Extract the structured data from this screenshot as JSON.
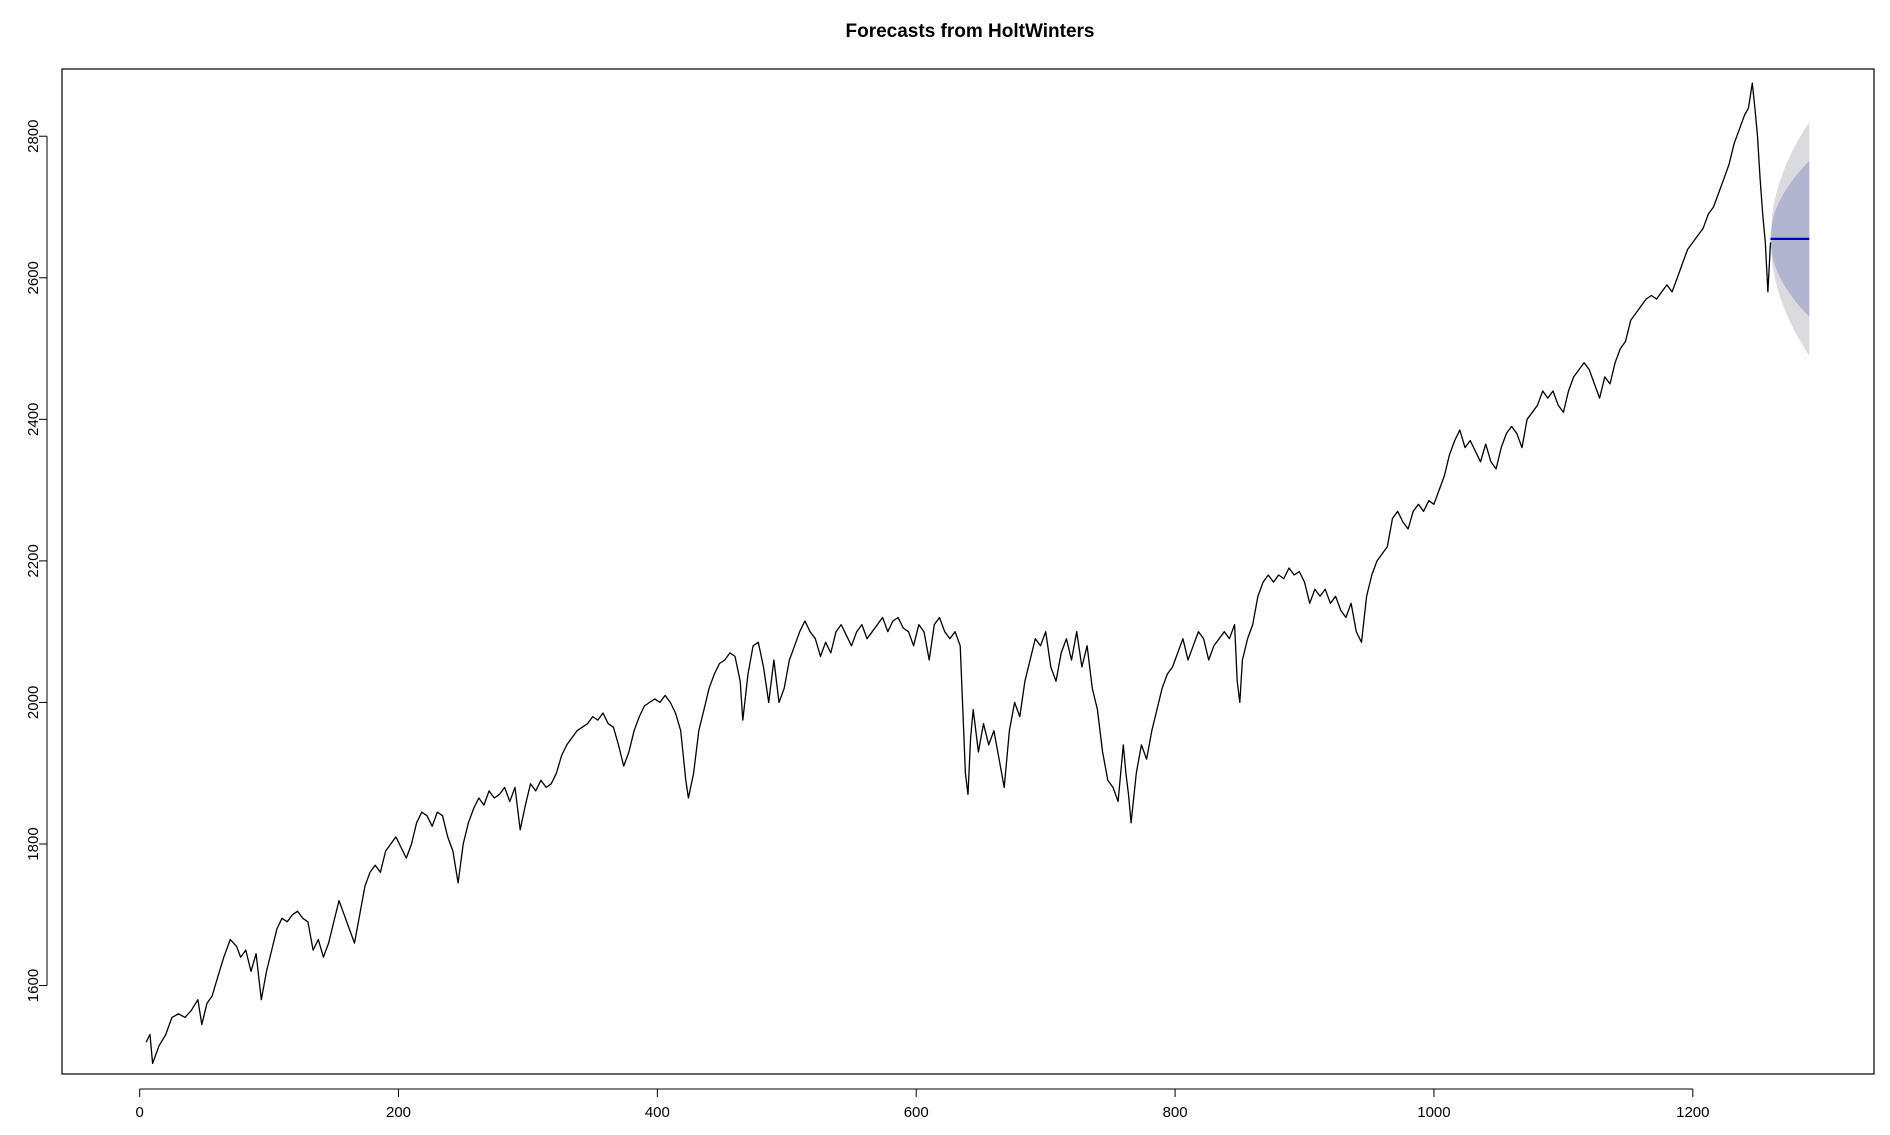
{
  "chart_data": {
    "type": "line",
    "title": "Forecasts from HoltWinters",
    "xlabel": "",
    "ylabel": "",
    "xlim": [
      -60,
      1340
    ],
    "ylim": [
      1475,
      2895
    ],
    "x_ticks": [
      0,
      200,
      400,
      600,
      800,
      1000,
      1200
    ],
    "y_ticks": [
      1600,
      1800,
      2000,
      2200,
      2400,
      2600,
      2800
    ],
    "grid": false,
    "legend": "none",
    "colors": {
      "history": "#000000",
      "forecast": "#0000cc",
      "interval_80": "#b1b5ce",
      "interval_95": "#dbdbdf"
    },
    "history_points": [
      [
        5,
        1520
      ],
      [
        8,
        1531
      ],
      [
        10,
        1490
      ],
      [
        15,
        1515
      ],
      [
        20,
        1530
      ],
      [
        25,
        1555
      ],
      [
        30,
        1560
      ],
      [
        35,
        1555
      ],
      [
        40,
        1565
      ],
      [
        45,
        1580
      ],
      [
        48,
        1545
      ],
      [
        52,
        1575
      ],
      [
        56,
        1585
      ],
      [
        60,
        1610
      ],
      [
        65,
        1640
      ],
      [
        70,
        1665
      ],
      [
        75,
        1655
      ],
      [
        78,
        1640
      ],
      [
        82,
        1650
      ],
      [
        86,
        1620
      ],
      [
        90,
        1645
      ],
      [
        94,
        1580
      ],
      [
        98,
        1620
      ],
      [
        102,
        1650
      ],
      [
        106,
        1680
      ],
      [
        110,
        1695
      ],
      [
        114,
        1690
      ],
      [
        118,
        1700
      ],
      [
        122,
        1705
      ],
      [
        126,
        1695
      ],
      [
        130,
        1690
      ],
      [
        134,
        1650
      ],
      [
        138,
        1665
      ],
      [
        142,
        1640
      ],
      [
        146,
        1660
      ],
      [
        150,
        1690
      ],
      [
        154,
        1720
      ],
      [
        158,
        1700
      ],
      [
        162,
        1680
      ],
      [
        166,
        1660
      ],
      [
        170,
        1700
      ],
      [
        174,
        1740
      ],
      [
        178,
        1760
      ],
      [
        182,
        1770
      ],
      [
        186,
        1760
      ],
      [
        190,
        1790
      ],
      [
        194,
        1800
      ],
      [
        198,
        1810
      ],
      [
        202,
        1795
      ],
      [
        206,
        1780
      ],
      [
        210,
        1800
      ],
      [
        214,
        1830
      ],
      [
        218,
        1845
      ],
      [
        222,
        1840
      ],
      [
        226,
        1825
      ],
      [
        230,
        1845
      ],
      [
        234,
        1840
      ],
      [
        238,
        1810
      ],
      [
        242,
        1790
      ],
      [
        246,
        1745
      ],
      [
        250,
        1800
      ],
      [
        254,
        1830
      ],
      [
        258,
        1850
      ],
      [
        262,
        1865
      ],
      [
        266,
        1855
      ],
      [
        270,
        1875
      ],
      [
        274,
        1865
      ],
      [
        278,
        1870
      ],
      [
        282,
        1880
      ],
      [
        286,
        1860
      ],
      [
        290,
        1880
      ],
      [
        294,
        1820
      ],
      [
        298,
        1855
      ],
      [
        302,
        1885
      ],
      [
        306,
        1875
      ],
      [
        310,
        1890
      ],
      [
        314,
        1880
      ],
      [
        318,
        1885
      ],
      [
        322,
        1900
      ],
      [
        326,
        1925
      ],
      [
        330,
        1940
      ],
      [
        334,
        1950
      ],
      [
        338,
        1960
      ],
      [
        342,
        1965
      ],
      [
        346,
        1970
      ],
      [
        350,
        1980
      ],
      [
        354,
        1975
      ],
      [
        358,
        1985
      ],
      [
        362,
        1970
      ],
      [
        366,
        1965
      ],
      [
        370,
        1940
      ],
      [
        374,
        1910
      ],
      [
        378,
        1930
      ],
      [
        382,
        1960
      ],
      [
        386,
        1980
      ],
      [
        390,
        1995
      ],
      [
        394,
        2000
      ],
      [
        398,
        2005
      ],
      [
        402,
        2000
      ],
      [
        406,
        2010
      ],
      [
        410,
        2000
      ],
      [
        414,
        1985
      ],
      [
        418,
        1960
      ],
      [
        422,
        1890
      ],
      [
        424,
        1865
      ],
      [
        428,
        1900
      ],
      [
        432,
        1960
      ],
      [
        436,
        1990
      ],
      [
        440,
        2020
      ],
      [
        444,
        2040
      ],
      [
        448,
        2055
      ],
      [
        452,
        2060
      ],
      [
        456,
        2070
      ],
      [
        460,
        2065
      ],
      [
        464,
        2030
      ],
      [
        466,
        1975
      ],
      [
        470,
        2040
      ],
      [
        474,
        2080
      ],
      [
        478,
        2085
      ],
      [
        482,
        2050
      ],
      [
        486,
        2000
      ],
      [
        490,
        2060
      ],
      [
        494,
        2000
      ],
      [
        498,
        2020
      ],
      [
        502,
        2060
      ],
      [
        506,
        2080
      ],
      [
        510,
        2100
      ],
      [
        514,
        2115
      ],
      [
        518,
        2100
      ],
      [
        522,
        2090
      ],
      [
        526,
        2065
      ],
      [
        530,
        2085
      ],
      [
        534,
        2070
      ],
      [
        538,
        2100
      ],
      [
        542,
        2110
      ],
      [
        546,
        2095
      ],
      [
        550,
        2080
      ],
      [
        554,
        2100
      ],
      [
        558,
        2110
      ],
      [
        562,
        2090
      ],
      [
        566,
        2100
      ],
      [
        570,
        2110
      ],
      [
        574,
        2120
      ],
      [
        578,
        2100
      ],
      [
        582,
        2115
      ],
      [
        586,
        2120
      ],
      [
        590,
        2105
      ],
      [
        594,
        2100
      ],
      [
        598,
        2080
      ],
      [
        602,
        2110
      ],
      [
        606,
        2100
      ],
      [
        610,
        2060
      ],
      [
        614,
        2110
      ],
      [
        618,
        2120
      ],
      [
        622,
        2100
      ],
      [
        626,
        2090
      ],
      [
        630,
        2100
      ],
      [
        634,
        2080
      ],
      [
        636,
        1990
      ],
      [
        638,
        1900
      ],
      [
        640,
        1870
      ],
      [
        642,
        1950
      ],
      [
        644,
        1990
      ],
      [
        648,
        1930
      ],
      [
        652,
        1970
      ],
      [
        656,
        1940
      ],
      [
        660,
        1960
      ],
      [
        664,
        1920
      ],
      [
        668,
        1880
      ],
      [
        672,
        1960
      ],
      [
        676,
        2000
      ],
      [
        680,
        1980
      ],
      [
        684,
        2030
      ],
      [
        688,
        2060
      ],
      [
        692,
        2090
      ],
      [
        696,
        2080
      ],
      [
        700,
        2100
      ],
      [
        704,
        2050
      ],
      [
        708,
        2030
      ],
      [
        712,
        2070
      ],
      [
        716,
        2090
      ],
      [
        720,
        2060
      ],
      [
        724,
        2100
      ],
      [
        728,
        2050
      ],
      [
        732,
        2080
      ],
      [
        736,
        2020
      ],
      [
        740,
        1990
      ],
      [
        744,
        1930
      ],
      [
        748,
        1890
      ],
      [
        752,
        1880
      ],
      [
        756,
        1860
      ],
      [
        758,
        1900
      ],
      [
        760,
        1940
      ],
      [
        762,
        1900
      ],
      [
        764,
        1870
      ],
      [
        766,
        1830
      ],
      [
        770,
        1900
      ],
      [
        774,
        1940
      ],
      [
        778,
        1920
      ],
      [
        782,
        1960
      ],
      [
        786,
        1990
      ],
      [
        790,
        2020
      ],
      [
        794,
        2040
      ],
      [
        798,
        2050
      ],
      [
        802,
        2070
      ],
      [
        806,
        2090
      ],
      [
        810,
        2060
      ],
      [
        814,
        2080
      ],
      [
        818,
        2100
      ],
      [
        822,
        2090
      ],
      [
        826,
        2060
      ],
      [
        830,
        2080
      ],
      [
        834,
        2090
      ],
      [
        838,
        2100
      ],
      [
        842,
        2090
      ],
      [
        846,
        2110
      ],
      [
        848,
        2030
      ],
      [
        850,
        2000
      ],
      [
        852,
        2060
      ],
      [
        856,
        2090
      ],
      [
        860,
        2110
      ],
      [
        864,
        2150
      ],
      [
        868,
        2170
      ],
      [
        872,
        2180
      ],
      [
        876,
        2170
      ],
      [
        880,
        2180
      ],
      [
        884,
        2175
      ],
      [
        888,
        2190
      ],
      [
        892,
        2180
      ],
      [
        896,
        2185
      ],
      [
        900,
        2170
      ],
      [
        904,
        2140
      ],
      [
        908,
        2160
      ],
      [
        912,
        2150
      ],
      [
        916,
        2160
      ],
      [
        920,
        2140
      ],
      [
        924,
        2150
      ],
      [
        928,
        2130
      ],
      [
        932,
        2120
      ],
      [
        936,
        2140
      ],
      [
        940,
        2100
      ],
      [
        944,
        2085
      ],
      [
        948,
        2150
      ],
      [
        952,
        2180
      ],
      [
        956,
        2200
      ],
      [
        960,
        2210
      ],
      [
        964,
        2220
      ],
      [
        968,
        2260
      ],
      [
        972,
        2270
      ],
      [
        976,
        2255
      ],
      [
        980,
        2245
      ],
      [
        984,
        2270
      ],
      [
        988,
        2280
      ],
      [
        992,
        2270
      ],
      [
        996,
        2285
      ],
      [
        1000,
        2280
      ],
      [
        1004,
        2300
      ],
      [
        1008,
        2320
      ],
      [
        1012,
        2350
      ],
      [
        1016,
        2370
      ],
      [
        1020,
        2385
      ],
      [
        1024,
        2360
      ],
      [
        1028,
        2370
      ],
      [
        1032,
        2355
      ],
      [
        1036,
        2340
      ],
      [
        1040,
        2365
      ],
      [
        1044,
        2340
      ],
      [
        1048,
        2330
      ],
      [
        1052,
        2360
      ],
      [
        1056,
        2380
      ],
      [
        1060,
        2390
      ],
      [
        1064,
        2380
      ],
      [
        1068,
        2360
      ],
      [
        1072,
        2400
      ],
      [
        1076,
        2410
      ],
      [
        1080,
        2420
      ],
      [
        1084,
        2440
      ],
      [
        1088,
        2430
      ],
      [
        1092,
        2440
      ],
      [
        1096,
        2420
      ],
      [
        1100,
        2410
      ],
      [
        1104,
        2440
      ],
      [
        1108,
        2460
      ],
      [
        1112,
        2470
      ],
      [
        1116,
        2480
      ],
      [
        1120,
        2470
      ],
      [
        1124,
        2450
      ],
      [
        1128,
        2430
      ],
      [
        1132,
        2460
      ],
      [
        1136,
        2450
      ],
      [
        1140,
        2480
      ],
      [
        1144,
        2500
      ],
      [
        1148,
        2510
      ],
      [
        1152,
        2540
      ],
      [
        1156,
        2550
      ],
      [
        1160,
        2560
      ],
      [
        1164,
        2570
      ],
      [
        1168,
        2575
      ],
      [
        1172,
        2570
      ],
      [
        1176,
        2580
      ],
      [
        1180,
        2590
      ],
      [
        1184,
        2580
      ],
      [
        1188,
        2600
      ],
      [
        1192,
        2620
      ],
      [
        1196,
        2640
      ],
      [
        1200,
        2650
      ],
      [
        1204,
        2660
      ],
      [
        1208,
        2670
      ],
      [
        1212,
        2690
      ],
      [
        1216,
        2700
      ],
      [
        1220,
        2720
      ],
      [
        1224,
        2740
      ],
      [
        1228,
        2760
      ],
      [
        1232,
        2790
      ],
      [
        1236,
        2810
      ],
      [
        1240,
        2830
      ],
      [
        1243,
        2840
      ],
      [
        1246,
        2875
      ],
      [
        1248,
        2840
      ],
      [
        1250,
        2800
      ],
      [
        1252,
        2740
      ],
      [
        1254,
        2690
      ],
      [
        1256,
        2650
      ],
      [
        1258,
        2580
      ],
      [
        1260,
        2650
      ]
    ],
    "forecast": {
      "x": [
        1260,
        1290
      ],
      "mean": [
        2655,
        2655
      ],
      "lower_80": [
        2655,
        2545
      ],
      "upper_80": [
        2655,
        2765
      ],
      "lower_95": [
        2655,
        2490
      ],
      "upper_95": [
        2655,
        2820
      ]
    }
  }
}
